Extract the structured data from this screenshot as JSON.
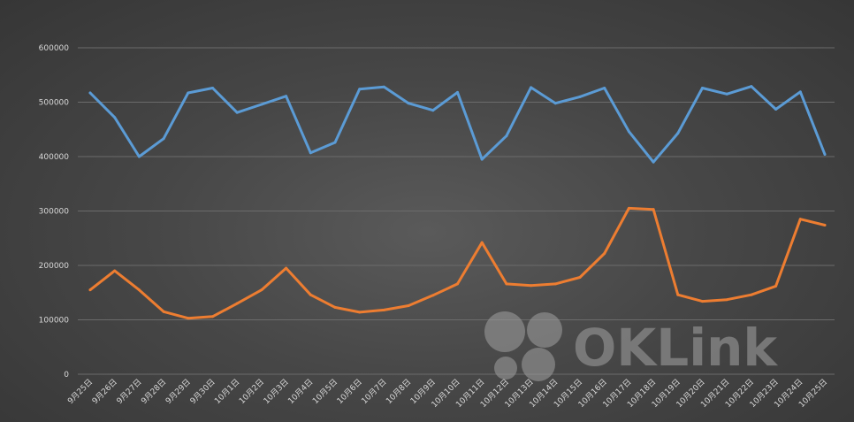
{
  "chart_data": {
    "type": "line",
    "title": "",
    "xlabel": "",
    "ylabel": "",
    "ylim": [
      0,
      600000
    ],
    "yticks": [
      "0",
      "100000",
      "200000",
      "300000",
      "400000",
      "500000",
      "600000"
    ],
    "yticks_values": [
      0,
      100000,
      200000,
      300000,
      400000,
      500000,
      600000
    ],
    "grid": true,
    "legend": "none",
    "categories": [
      "9月25日",
      "9月26日",
      "9月27日",
      "9月28日",
      "9月29日",
      "9月30日",
      "10月1日",
      "10月2日",
      "10月3日",
      "10月4日",
      "10月5日",
      "10月6日",
      "10月7日",
      "10月8日",
      "10月9日",
      "10月10日",
      "10月11日",
      "10月12日",
      "10月13日",
      "10月14日",
      "10月15日",
      "10月16日",
      "10月17日",
      "10月18日",
      "10月19日",
      "10月20日",
      "10月21日",
      "10月22日",
      "10月23日",
      "10月24日",
      "10月25日"
    ],
    "series": [
      {
        "color": "#5b9bd5",
        "values": [
          517000,
          472000,
          400000,
          433000,
          517000,
          526000,
          481000,
          496000,
          511000,
          407000,
          426000,
          524000,
          528000,
          498000,
          485000,
          518000,
          395000,
          438000,
          527000,
          498000,
          510000,
          526000,
          446000,
          390000,
          443000,
          526000,
          515000,
          529000,
          487000,
          519000,
          404000
        ]
      },
      {
        "color": "#ed7d31",
        "values": [
          155000,
          190000,
          155000,
          115000,
          103000,
          106000,
          130000,
          155000,
          195000,
          146000,
          123000,
          114000,
          118000,
          126000,
          145000,
          166000,
          242000,
          166000,
          163000,
          166000,
          178000,
          222000,
          305000,
          303000,
          146000,
          134000,
          137000,
          146000,
          162000,
          285000,
          274000
        ]
      }
    ]
  },
  "watermark": {
    "text": "OKLink"
  }
}
